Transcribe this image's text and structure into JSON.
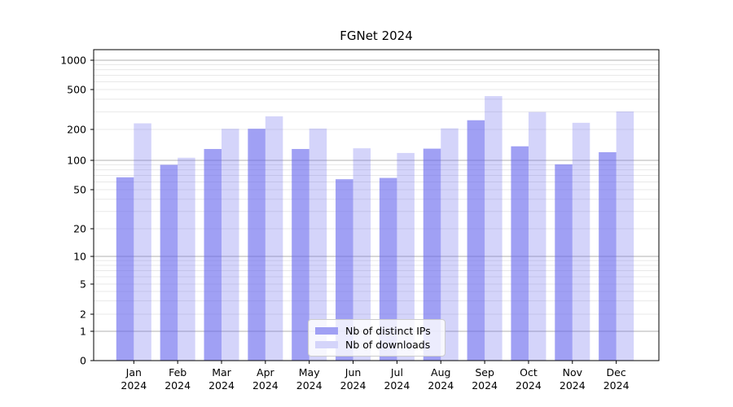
{
  "chart_data": {
    "type": "bar",
    "title": "FGNet 2024",
    "categories": [
      "Jan",
      "Feb",
      "Mar",
      "Apr",
      "May",
      "Jun",
      "Jul",
      "Aug",
      "Sep",
      "Oct",
      "Nov",
      "Dec"
    ],
    "year_label": "2024",
    "series": [
      {
        "name": "Nb of distinct IPs",
        "color": "#6666ee",
        "alpha": 0.62,
        "values": [
          67,
          90,
          129,
          203,
          129,
          64,
          66,
          130,
          247,
          137,
          91,
          120
        ]
      },
      {
        "name": "Nb of downloads",
        "color": "#6666ee",
        "alpha": 0.28,
        "values": [
          230,
          106,
          203,
          270,
          204,
          131,
          118,
          205,
          430,
          298,
          233,
          302
        ]
      }
    ],
    "yscale": "symlog",
    "yticks": [
      1000,
      500,
      200,
      100,
      50,
      20,
      10,
      5,
      2,
      1,
      0
    ],
    "ylim": [
      0,
      1200
    ],
    "grid": "both",
    "legend_position": "lower-center",
    "colors": {
      "major_grid": "#b0b0b0",
      "minor_grid": "#e8e8e8",
      "spine": "#000000",
      "tick_label": "#000000",
      "background": "#ffffff"
    }
  }
}
